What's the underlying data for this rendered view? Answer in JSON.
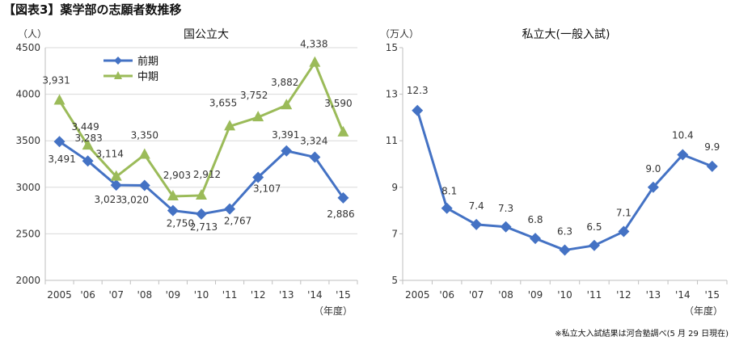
{
  "page_title": "【図表3】薬学部の志願者数推移",
  "footnote": "※私立大入試結果は河合塾調べ(5 月 29 日現在)",
  "colors": {
    "blue": "#4472C4",
    "green": "#9BBB59",
    "grid": "#D9D9D9",
    "axis": "#BFBFBF"
  },
  "chart_data": [
    {
      "type": "line",
      "title": "国公立大",
      "ylabel": "（人）",
      "xlabel": "（年度）",
      "categories": [
        "2005",
        "'06",
        "'07",
        "'08",
        "'09",
        "'10",
        "'11",
        "'12",
        "'13",
        "'14",
        "'15"
      ],
      "ylim": [
        2000,
        4500
      ],
      "yticks": [
        2000,
        2500,
        3000,
        3500,
        4000,
        4500
      ],
      "grid": true,
      "legend_position": "top-left",
      "series": [
        {
          "name": "前期",
          "color": "#4472C4",
          "marker": "diamond",
          "values": [
            3491,
            3283,
            3023,
            3020,
            2750,
            2713,
            2767,
            3107,
            3391,
            3324,
            2886
          ],
          "labels": [
            "3,491",
            "3,283",
            "3,023",
            "3,020",
            "2,750",
            "2,713",
            "2,767",
            "3,107",
            "3,391",
            "3,324",
            "2,886"
          ]
        },
        {
          "name": "中期",
          "color": "#9BBB59",
          "marker": "triangle",
          "values": [
            3931,
            3449,
            3114,
            3350,
            2903,
            2912,
            3655,
            3752,
            3882,
            4338,
            3590
          ],
          "labels": [
            "3,931",
            "3,449",
            "3,114",
            "3,350",
            "2,903",
            "2,912",
            "3,655",
            "3,752",
            "3,882",
            "4,338",
            "3,590"
          ]
        }
      ]
    },
    {
      "type": "line",
      "title": "私立大(一般入試)",
      "ylabel": "（万人）",
      "xlabel": "（年度）",
      "categories": [
        "2005",
        "'06",
        "'07",
        "'08",
        "'09",
        "'10",
        "'11",
        "'12",
        "'13",
        "'14",
        "'15"
      ],
      "ylim": [
        5,
        15
      ],
      "yticks": [
        5,
        7,
        9,
        11,
        13,
        15
      ],
      "grid": false,
      "series": [
        {
          "color": "#4472C4",
          "marker": "diamond",
          "values": [
            12.3,
            8.1,
            7.4,
            7.3,
            6.8,
            6.3,
            6.5,
            7.1,
            9.0,
            10.4,
            9.9
          ],
          "labels": [
            "12.3",
            "8.1",
            "7.4",
            "7.3",
            "6.8",
            "6.3",
            "6.5",
            "7.1",
            "9.0",
            "10.4",
            "9.9"
          ]
        }
      ]
    }
  ]
}
